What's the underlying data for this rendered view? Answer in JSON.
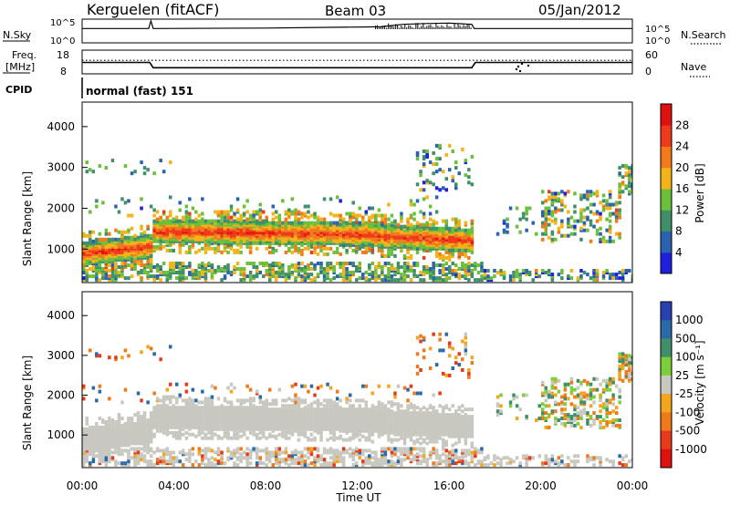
{
  "header": {
    "station": "Kerguelen (fitACF)",
    "beam": "Beam 03",
    "date": "05/Jan/2012"
  },
  "panels": {
    "nsky_label": "N.Sky",
    "nsearch_label": "N.Search",
    "nsky_ticks": [
      "10^5",
      "10^0"
    ],
    "nsky_right_ticks": [
      "10^5",
      "10^0"
    ],
    "freq_label": "Freq.",
    "freq_unit": "[MHz]",
    "freq_ticks": [
      "18",
      "8"
    ],
    "nave_label": "Nave",
    "nave_ticks": [
      "60",
      "0"
    ],
    "cpid_label": "CPID",
    "cpid_value": "normal (fast) 151"
  },
  "chart_data": [
    {
      "type": "line",
      "name": "nsky-search",
      "x_range": [
        0,
        24
      ],
      "series": [
        {
          "x": [
            0,
            2.9,
            3.0,
            3.1,
            8,
            13,
            14,
            15,
            16,
            17,
            17.1,
            24
          ],
          "values": [
            3.2,
            3.2,
            5,
            3.2,
            3.3,
            3.6,
            4.2,
            4.4,
            4.5,
            4.2,
            3.2,
            3.2
          ]
        }
      ]
    },
    {
      "type": "line",
      "name": "freq-nave",
      "x_range": [
        0,
        24
      ],
      "series": [
        {
          "x": [
            0,
            2.95,
            3.1,
            17.0,
            17.15,
            24
          ],
          "values": [
            13,
            13,
            10.5,
            10.5,
            13,
            13
          ]
        },
        {
          "x": [
            0,
            24
          ],
          "values": [
            14,
            14
          ]
        }
      ]
    },
    {
      "type": "heatmap",
      "name": "power",
      "ylabel": "Slant Range [km]",
      "ylim": [
        180,
        4600
      ],
      "yticks": [
        1000,
        2000,
        3000,
        4000
      ],
      "colorbar_label": "Power [dB]",
      "colorbar_ticks": [
        4,
        8,
        12,
        16,
        20,
        24,
        28
      ],
      "colorbar_colors": [
        "#1f1fe0",
        "#2a62b0",
        "#3f8f6a",
        "#6bbf3a",
        "#f5b31a",
        "#f27a1a",
        "#ee3a1a",
        "#e01010"
      ]
    },
    {
      "type": "heatmap",
      "name": "velocity",
      "ylabel": "Slant Range [km]",
      "ylim": [
        180,
        4600
      ],
      "yticks": [
        1000,
        2000,
        3000,
        4000
      ],
      "xlabel": "Time UT",
      "xticks": [
        "00:00",
        "04:00",
        "08:00",
        "12:00",
        "16:00",
        "20:00",
        "00:00"
      ],
      "colorbar_label": "Velocity [m s⁻¹]",
      "colorbar_ticks": [
        "1000",
        "500",
        "100",
        "25",
        "-25",
        "-100",
        "-500",
        "-1000"
      ],
      "colorbar_colors": [
        "#2a3fb0",
        "#2a6aa8",
        "#3f8f6a",
        "#7ccf3a",
        "#c8c8c0",
        "#f3a51c",
        "#f07a1a",
        "#e83a1a",
        "#e01010"
      ]
    }
  ]
}
